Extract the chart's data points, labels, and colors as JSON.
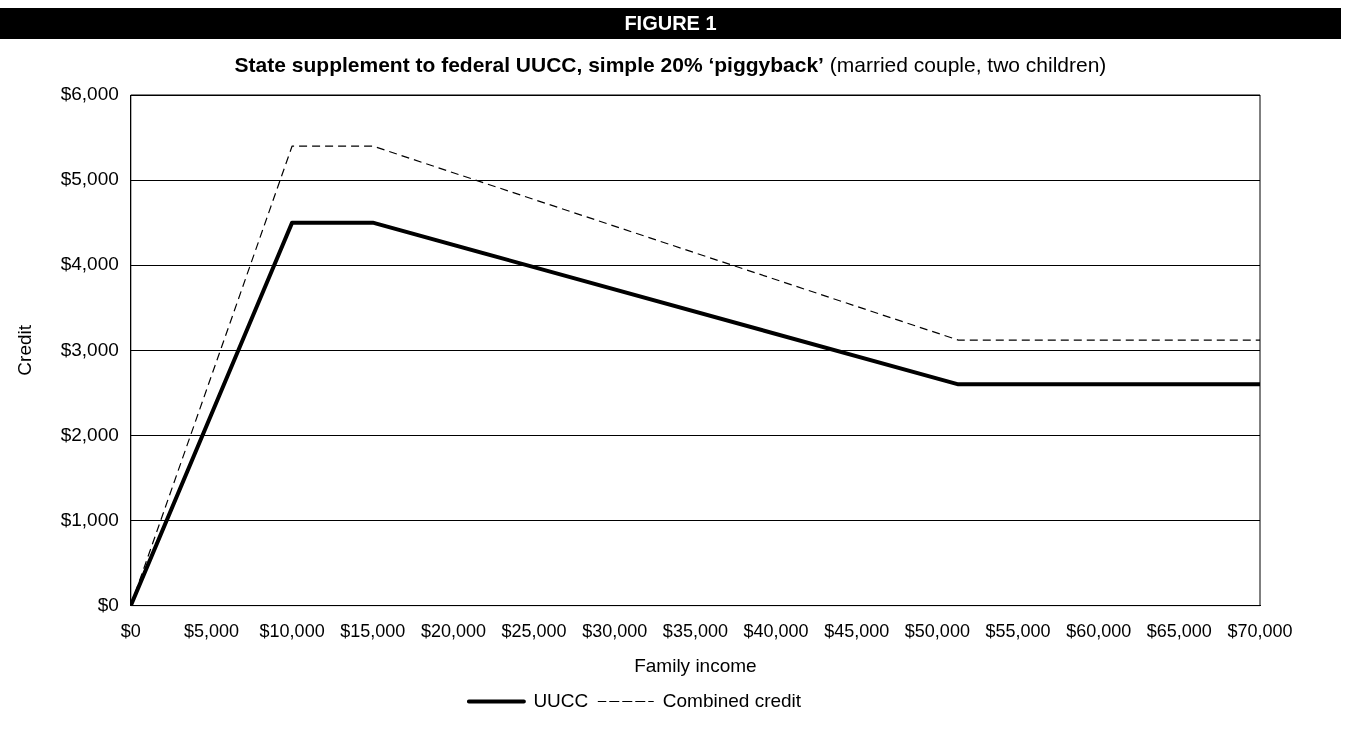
{
  "chart_data": {
    "type": "line",
    "title": "State supplement to federal UUCC, simple 20% ‘piggyback’",
    "subtitle": "(married couple, two children)",
    "annotations": [
      "FIGURE 1"
    ],
    "xlabel": "Family income",
    "ylabel": "Credit",
    "xlim": [
      0,
      70000
    ],
    "xticks": [
      {
        "value": 0,
        "label": "$0"
      },
      {
        "value": 5000,
        "label": "$5,000"
      },
      {
        "value": 10000,
        "label": "$10,000"
      },
      {
        "value": 15000,
        "label": "$15,000"
      },
      {
        "value": 20000,
        "label": "$20,000"
      },
      {
        "value": 25000,
        "label": "$25,000"
      },
      {
        "value": 30000,
        "label": "$30,000"
      },
      {
        "value": 35000,
        "label": "$35,000"
      },
      {
        "value": 40000,
        "label": "$40,000"
      },
      {
        "value": 45000,
        "label": "$45,000"
      },
      {
        "value": 50000,
        "label": "$50,000"
      },
      {
        "value": 55000,
        "label": "$55,000"
      },
      {
        "value": 60000,
        "label": "$60,000"
      },
      {
        "value": 65000,
        "label": "$65,000"
      },
      {
        "value": 70000,
        "label": "$70,000"
      }
    ],
    "ylim": [
      0,
      6000
    ],
    "yticks": [
      {
        "value": 0,
        "label": "$0"
      },
      {
        "value": 1000,
        "label": "$1,000"
      },
      {
        "value": 2000,
        "label": "$2,000"
      },
      {
        "value": 3000,
        "label": "$3,000"
      },
      {
        "value": 4000,
        "label": "$4,000"
      },
      {
        "value": 5000,
        "label": "$5,000"
      },
      {
        "value": 6000,
        "label": "$6,000"
      }
    ],
    "grid": "y",
    "legend": "bottom",
    "marker": "none",
    "series": [
      {
        "name": "UUCC",
        "color": "#000000",
        "line_style": "solid",
        "x": [
          0,
          10000,
          15000,
          51300,
          70000
        ],
        "values": [
          0,
          4500,
          4500,
          2600,
          2600
        ]
      },
      {
        "name": "Combined credit",
        "color": "#000000",
        "line_style": "dashed",
        "x": [
          0,
          10000,
          15000,
          51300,
          70000
        ],
        "values": [
          0,
          5400,
          5400,
          3120,
          3120
        ]
      }
    ]
  }
}
